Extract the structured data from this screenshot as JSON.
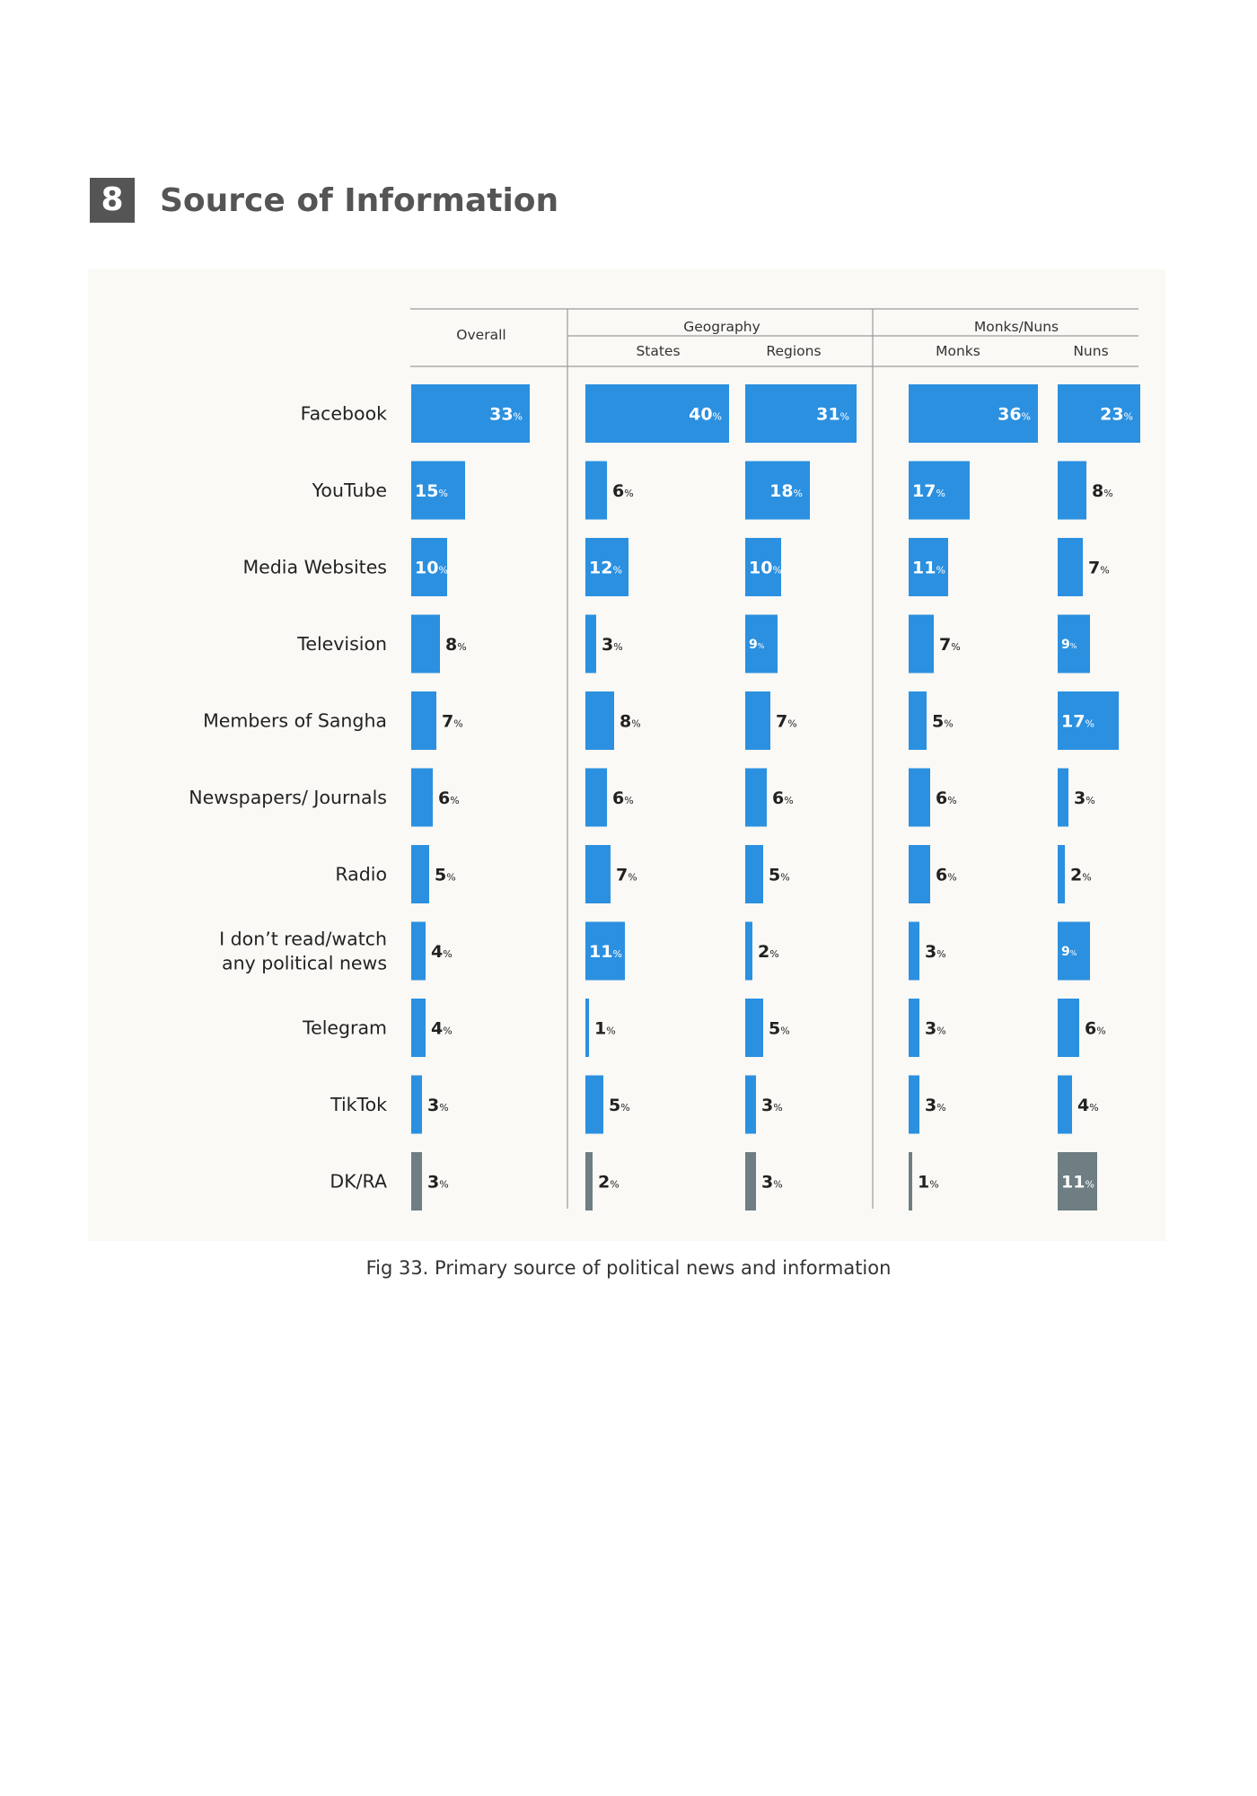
{
  "section": {
    "number": "8",
    "title": "Source of Information"
  },
  "caption": "Fig 33. Primary source of political news and information",
  "colors": {
    "bar": "#2b90e0",
    "dk_bar": "#6e7e82",
    "rule": "#9a9a9a",
    "panel": "#fbf9f5"
  },
  "headers": {
    "overall": "Overall",
    "geography": "Geography",
    "states": "States",
    "regions": "Regions",
    "monks_nuns": "Monks/Nuns",
    "monks": "Monks",
    "nuns": "Nuns"
  },
  "chart_data": {
    "type": "bar",
    "orientation": "horizontal",
    "unit": "%",
    "categories": [
      "Facebook",
      "YouTube",
      "Media Websites",
      "Television",
      "Members of Sangha",
      "Newspapers/ Journals",
      "Radio",
      "I don’t read/watch any political news",
      "Telegram",
      "TikTok",
      "DK/RA"
    ],
    "category_lines": [
      [
        "Facebook"
      ],
      [
        "YouTube"
      ],
      [
        "Media Websites"
      ],
      [
        "Television"
      ],
      [
        "Members of Sangha"
      ],
      [
        "Newspapers/ Journals"
      ],
      [
        "Radio"
      ],
      [
        "I don’t read/watch",
        "any political news"
      ],
      [
        "Telegram"
      ],
      [
        "TikTok"
      ],
      [
        "DK/RA"
      ]
    ],
    "series": [
      {
        "name": "Overall",
        "values": [
          33,
          15,
          10,
          8,
          7,
          6,
          5,
          4,
          4,
          3,
          3
        ]
      },
      {
        "name": "States",
        "values": [
          40,
          6,
          12,
          3,
          8,
          6,
          7,
          11,
          1,
          5,
          2
        ]
      },
      {
        "name": "Regions",
        "values": [
          31,
          18,
          10,
          9,
          7,
          6,
          5,
          2,
          5,
          3,
          3
        ]
      },
      {
        "name": "Monks",
        "values": [
          36,
          17,
          11,
          7,
          5,
          6,
          6,
          3,
          3,
          3,
          1
        ]
      },
      {
        "name": "Nuns",
        "values": [
          23,
          8,
          7,
          9,
          17,
          3,
          2,
          9,
          6,
          4,
          11
        ]
      }
    ]
  }
}
